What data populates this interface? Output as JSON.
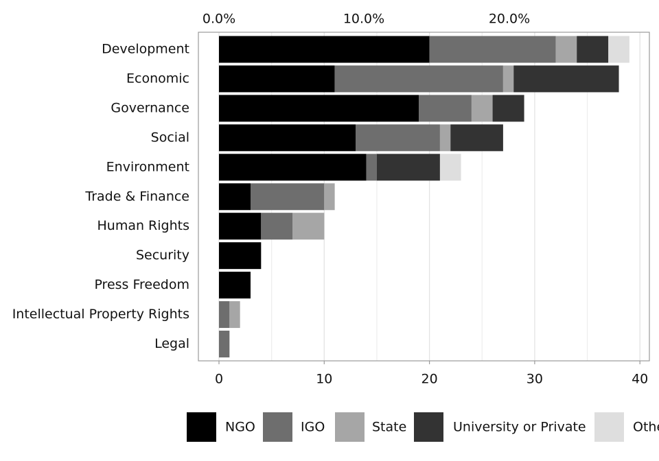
{
  "chart_data": {
    "type": "bar",
    "orientation": "horizontal",
    "stacked": true,
    "title": "",
    "xlabel": "",
    "ylabel": "",
    "xlim": [
      0,
      40
    ],
    "x_ticks": [
      0,
      10,
      20,
      30,
      40
    ],
    "x_tick_labels": [
      "0",
      "10",
      "20",
      "30",
      "40"
    ],
    "top_axis_ticks": [
      0,
      0.1,
      0.2
    ],
    "top_axis_tick_labels": [
      "0.0%",
      "10.0%",
      "20.0%"
    ],
    "grid": "vertical",
    "legend_position": "bottom",
    "categories": [
      "Development",
      "Economic",
      "Governance",
      "Social",
      "Environment",
      "Trade & Finance",
      "Human Rights",
      "Security",
      "Press Freedom",
      "Intellectual Property Rights",
      "Legal"
    ],
    "series": [
      {
        "name": "NGO",
        "color": "#000000",
        "values": [
          20,
          11,
          19,
          13,
          14,
          3,
          4,
          4,
          3,
          0,
          0
        ]
      },
      {
        "name": "IGO",
        "color": "#6e6e6e",
        "values": [
          12,
          16,
          5,
          8,
          1,
          7,
          3,
          0,
          0,
          1,
          1
        ]
      },
      {
        "name": "State",
        "color": "#a6a6a6",
        "values": [
          2,
          1,
          2,
          1,
          0,
          1,
          3,
          0,
          0,
          1,
          0
        ]
      },
      {
        "name": "University or Private",
        "color": "#333333",
        "values": [
          3,
          10,
          3,
          5,
          6,
          0,
          0,
          0,
          0,
          0,
          0
        ]
      },
      {
        "name": "Other",
        "color": "#dedede",
        "values": [
          2,
          0,
          0,
          0,
          2,
          0,
          0,
          0,
          0,
          0,
          0
        ]
      }
    ]
  }
}
